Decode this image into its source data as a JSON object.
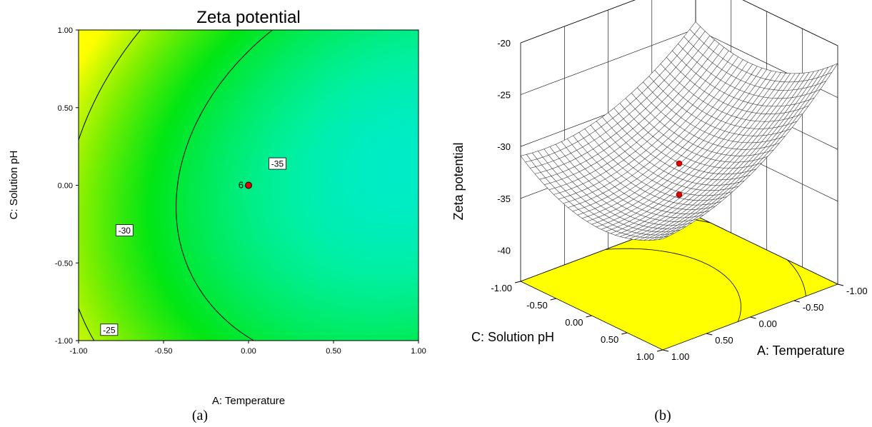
{
  "chart_data": [
    {
      "type": "contour",
      "panel_label": "(a)",
      "title": "Zeta potential",
      "xlabel": "A: Temperature",
      "ylabel": "C: Solution pH",
      "xlim": [
        -1,
        1
      ],
      "ylim": [
        -1,
        1
      ],
      "x_ticks": [
        "-1.00",
        "-0.50",
        "0.00",
        "0.50",
        "1.00"
      ],
      "y_ticks": [
        "-1.00",
        "-0.50",
        "0.00",
        "0.50",
        "1.00"
      ],
      "contour_levels": [
        -25,
        -30,
        -35
      ],
      "contour_labels": [
        "-25",
        "-30",
        "-35"
      ],
      "colors": {
        "high": "#ffff00",
        "mid": "#00ee00",
        "mid2": "#00ffff",
        "low": "#0055ff",
        "point": "#e00000"
      },
      "design_point": {
        "x": 0.0,
        "y": 0.0,
        "label": "6"
      }
    },
    {
      "type": "surface3d",
      "panel_label": "(b)",
      "zlabel": "Zeta potential",
      "xlabel": "A: Temperature",
      "ylabel": "C: Solution pH",
      "z_ticks": [
        "-20",
        "-25",
        "-30",
        "-35",
        "-40"
      ],
      "x_ticks": [
        "-1.00",
        "-0.50",
        "0.00",
        "0.50",
        "1.00"
      ],
      "y_ticks": [
        "-1.00",
        "-0.50",
        "0.00",
        "0.50",
        "1.00"
      ],
      "zlim": [
        -43,
        -20
      ],
      "colors": {
        "floor": "#ffff00",
        "mesh": "#333333",
        "point": "#e00000"
      },
      "design_points": [
        {
          "x": 0.0,
          "y": 0.0,
          "z": -31.5
        },
        {
          "x": 0.0,
          "y": 0.0,
          "z": -34.5
        }
      ]
    }
  ]
}
